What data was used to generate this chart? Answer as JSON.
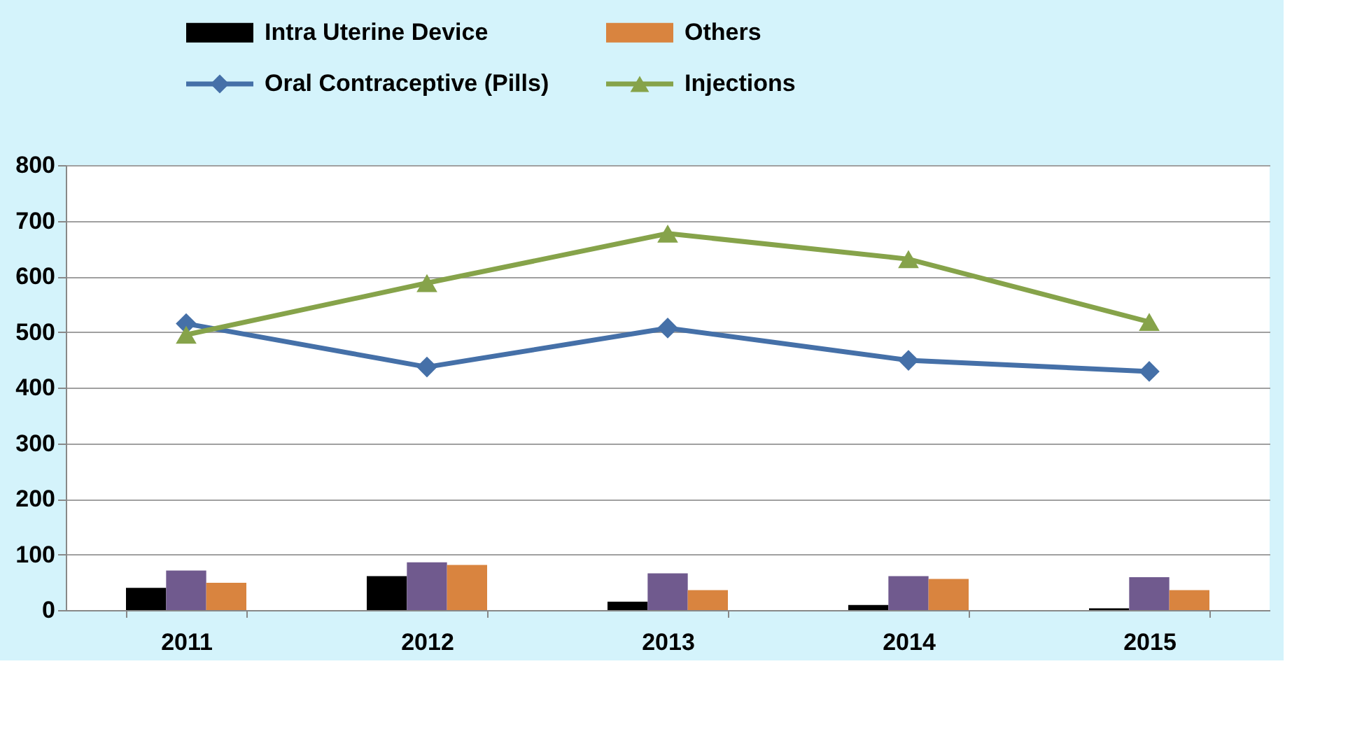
{
  "chart_data": {
    "type": "bar",
    "categories": [
      "2011",
      "2012",
      "2013",
      "2014",
      "2015"
    ],
    "series": [
      {
        "name": "Intra Uterine Device",
        "color": "#000000",
        "values": [
          40,
          61,
          15,
          9,
          3
        ]
      },
      {
        "color": "#705a8e",
        "values": [
          71,
          86,
          66,
          61,
          59
        ]
      },
      {
        "name": "Others",
        "color": "#d9843f",
        "values": [
          49,
          81,
          36,
          56,
          36
        ]
      },
      {
        "name": "Oral Contraceptive (Pills)",
        "type": "line",
        "marker": "diamond",
        "color": "#4570a8",
        "values": [
          515,
          437,
          507,
          449,
          429
        ]
      },
      {
        "name": "Injections",
        "type": "line",
        "marker": "triangle",
        "color": "#86a34a",
        "values": [
          495,
          588,
          677,
          631,
          518
        ]
      }
    ],
    "ylim": [
      0,
      800
    ],
    "yticks": [
      0,
      100,
      200,
      300,
      400,
      500,
      600,
      700,
      800
    ],
    "grid": "y",
    "legend": "top"
  }
}
